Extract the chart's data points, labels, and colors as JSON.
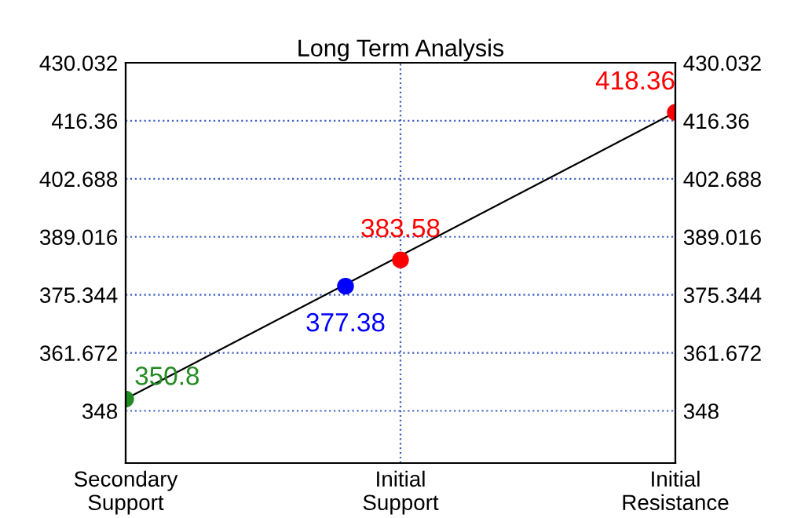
{
  "chart_data": {
    "type": "scatter",
    "title": "Long Term Analysis",
    "categories": [
      "Secondary\nSupport",
      null,
      null,
      null,
      null,
      "Initial\nSupport",
      null,
      null,
      null,
      null,
      "Initial\nResistance"
    ],
    "ylim": [
      335.7,
      430.032
    ],
    "yticks": [
      348,
      361.672,
      375.344,
      389.016,
      402.688,
      416.36,
      430.032
    ],
    "y2lim": [
      335.7,
      430.032
    ],
    "y2ticks": [
      348,
      361.672,
      375.344,
      389.016,
      402.688,
      416.36,
      430.032
    ],
    "grid": true,
    "series": [
      {
        "type": "line",
        "color": "#000000",
        "values": [
          350.8,
          null,
          null,
          null,
          null,
          null,
          null,
          null,
          null,
          null,
          418.36
        ]
      },
      {
        "values": [
          350.8,
          null,
          null,
          null,
          377.38,
          383.58,
          null,
          null,
          null,
          null,
          418.36
        ],
        "colors": [
          "#228b22",
          null,
          null,
          null,
          "#0000ff",
          "#ff0000",
          null,
          null,
          null,
          null,
          "#ff0000"
        ],
        "marker": "circle",
        "value_labels": [
          "350.8",
          null,
          null,
          null,
          "377.38",
          "383.58",
          null,
          null,
          null,
          null,
          "418.36"
        ]
      }
    ]
  }
}
